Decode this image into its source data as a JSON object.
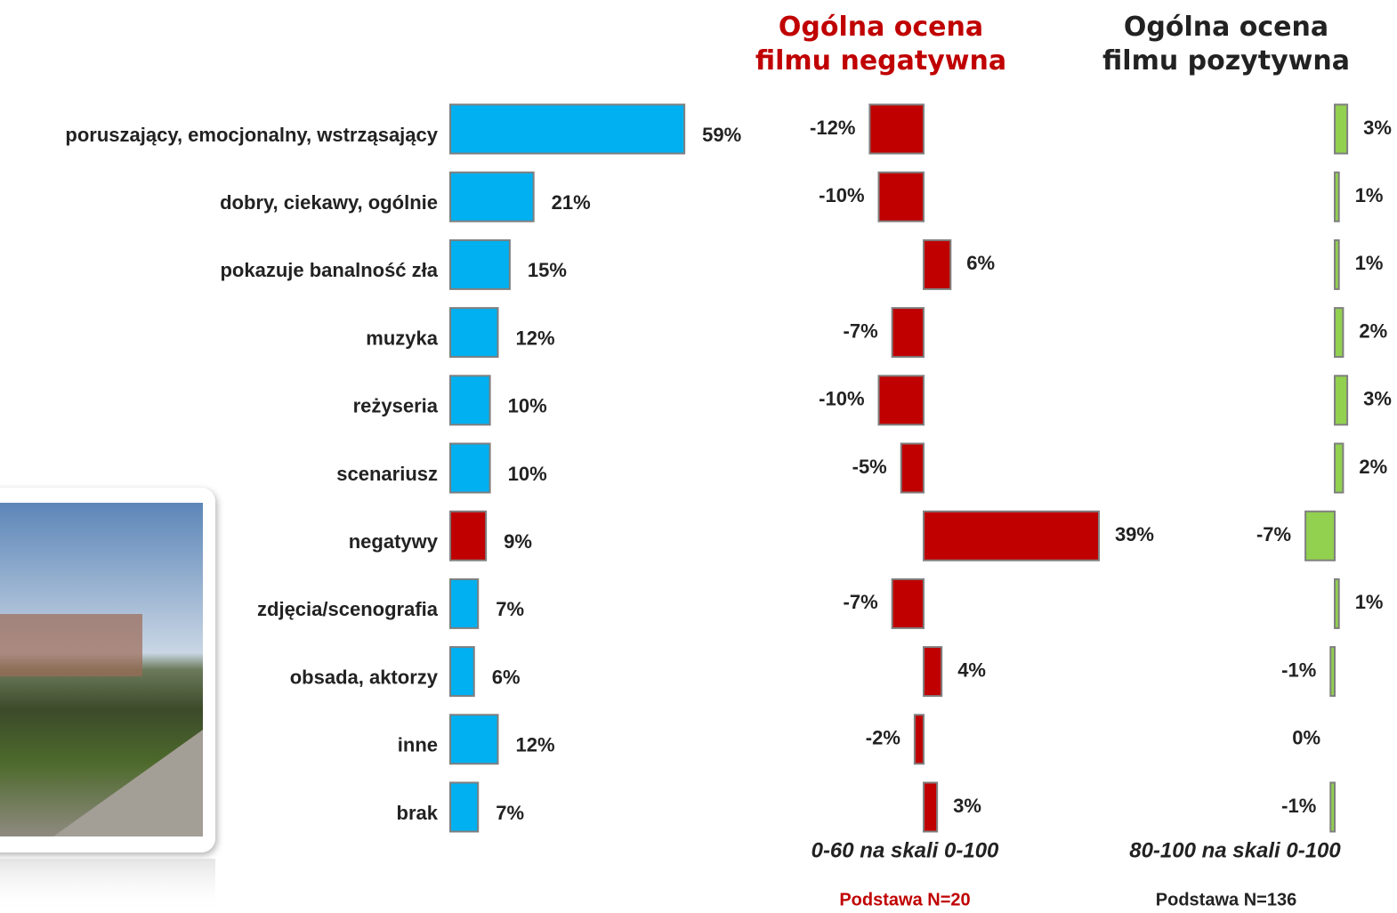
{
  "chart_data": [
    {
      "type": "bar",
      "categories": [
        "poruszający, emocjonalny, wstrząsający",
        "dobry, ciekawy, ogólnie",
        "pokazuje banalność zła",
        "muzyka",
        "reżyseria",
        "scenariusz",
        "negatywy",
        "zdjęcia/scenografia",
        "obsada, aktorzy",
        "inne",
        "brak"
      ],
      "values": [
        59,
        21,
        15,
        12,
        10,
        10,
        9,
        7,
        6,
        12,
        7
      ],
      "value_labels": [
        "59%",
        "21%",
        "15%",
        "12%",
        "10%",
        "10%",
        "9%",
        "7%",
        "6%",
        "12%",
        "7%"
      ],
      "colors": [
        "#00b0f0",
        "#00b0f0",
        "#00b0f0",
        "#00b0f0",
        "#00b0f0",
        "#00b0f0",
        "#c00000",
        "#00b0f0",
        "#00b0f0",
        "#00b0f0",
        "#00b0f0"
      ]
    },
    {
      "type": "diverging",
      "title": "Ogólna ocena filmu negatywna",
      "values": [
        -12,
        -10,
        6,
        -7,
        -10,
        -5,
        39,
        -7,
        4,
        -2,
        3
      ],
      "value_labels": [
        "-12%",
        "-10%",
        "6%",
        "-7%",
        "-10%",
        "-5%",
        "39%",
        "-7%",
        "4%",
        "-2%",
        "3%"
      ],
      "color": "#c00000",
      "note": "0-60 na skali 0-100",
      "base": "Podstawa N=20"
    },
    {
      "type": "diverging",
      "title": "Ogólna ocena filmu pozytywna",
      "values": [
        3,
        1,
        1,
        2,
        3,
        2,
        -7,
        1,
        -1,
        0,
        -1
      ],
      "value_labels": [
        "3%",
        "1%",
        "1%",
        "2%",
        "3%",
        "2%",
        "-7%",
        "1%",
        "-1%",
        "0%",
        "-1%"
      ],
      "color": "#92d050",
      "note": "80-100 na skali 0-100",
      "base": "Podstawa N=136"
    }
  ]
}
